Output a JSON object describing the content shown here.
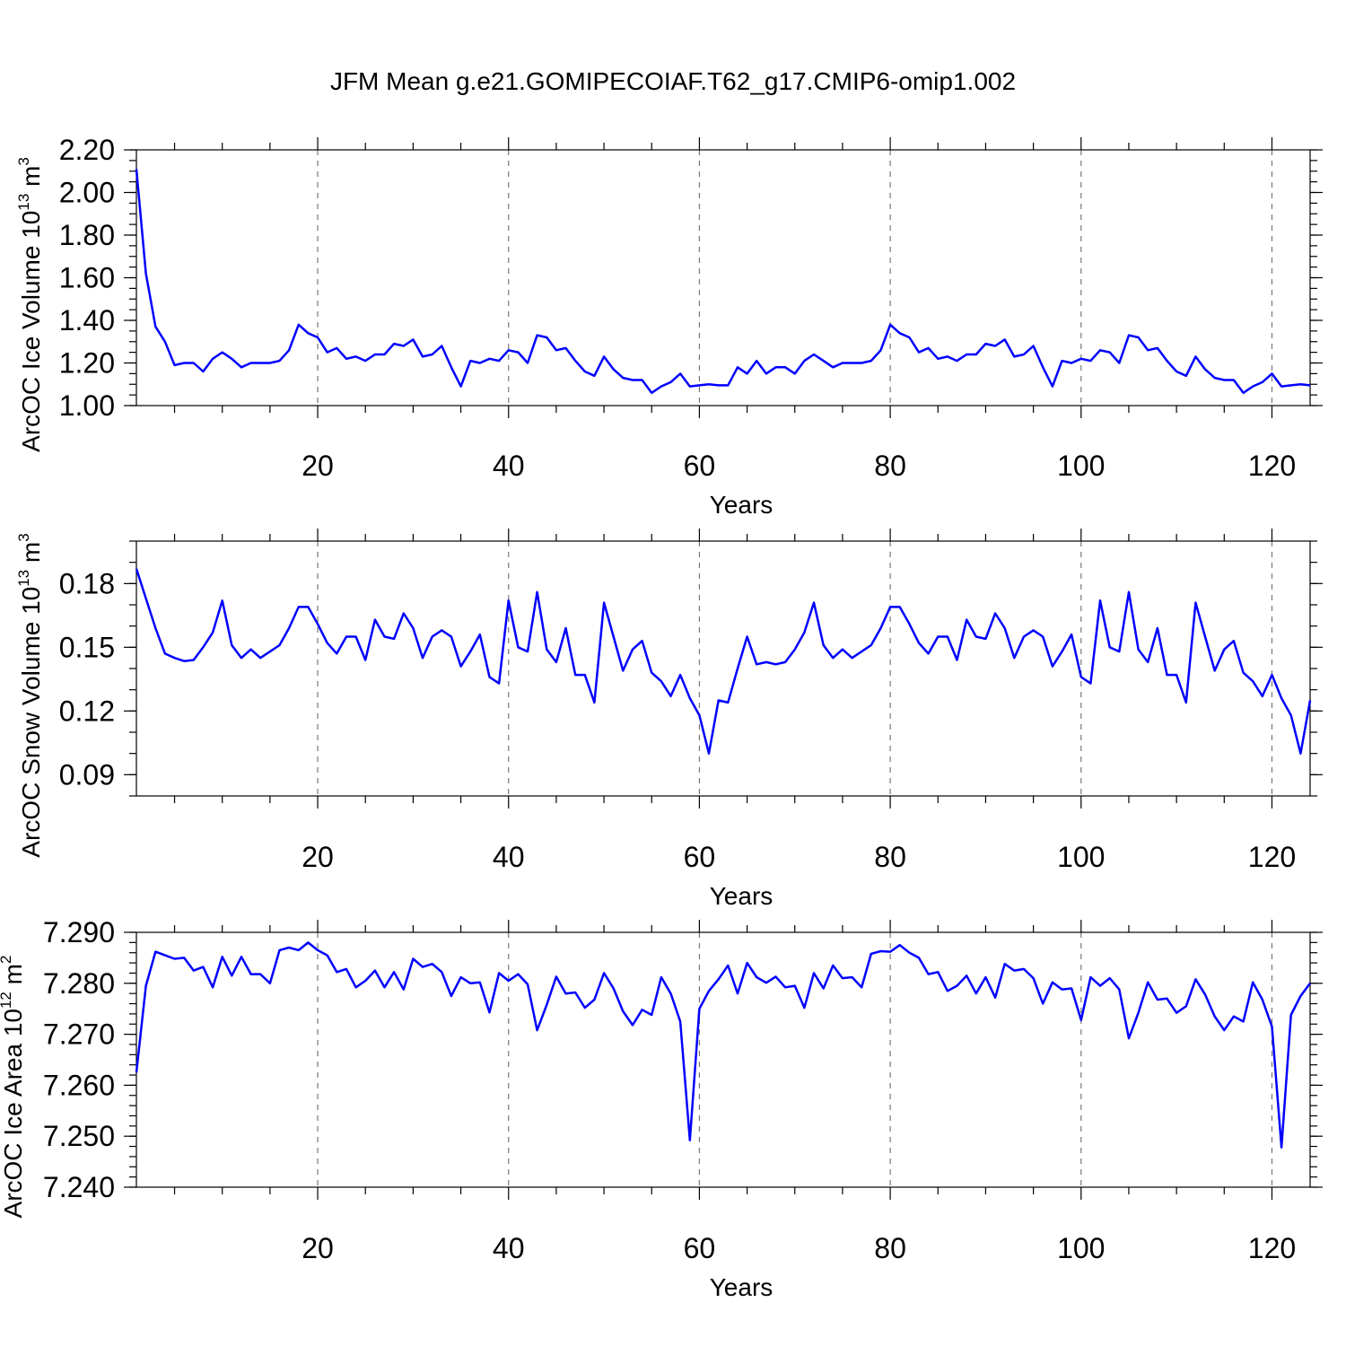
{
  "figure": {
    "title": "JFM Mean g.e21.GOMIPECOIAF.T62_g17.CMIP6-omip1.002"
  },
  "chart_data": [
    {
      "type": "line",
      "xlabel": "Years",
      "ylabel": {
        "main": "ArcOC Ice Volume 10",
        "sup": "13",
        "unit": " m",
        "unit_sup": "3"
      },
      "xlim": [
        1,
        124
      ],
      "ylim": [
        1.0,
        2.2
      ],
      "xticks": [
        20,
        40,
        60,
        80,
        100,
        120
      ],
      "xtick_labels": [
        "20",
        "40",
        "60",
        "80",
        "100",
        "120"
      ],
      "yticks": [
        1.0,
        1.2,
        1.4,
        1.6,
        1.8,
        2.0,
        2.2
      ],
      "ytick_labels": [
        "1.00",
        "1.20",
        "1.40",
        "1.60",
        "1.80",
        "2.00",
        "2.20"
      ],
      "yminor_step": 0.05,
      "grid": "vertical dashed",
      "color": "#0000ff",
      "x": [
        1,
        2,
        3,
        4,
        5,
        6,
        7,
        8,
        9,
        10,
        11,
        12,
        13,
        14,
        15,
        16,
        17,
        18,
        19,
        20,
        21,
        22,
        23,
        24,
        25,
        26,
        27,
        28,
        29,
        30,
        31,
        32,
        33,
        34,
        35,
        36,
        37,
        38,
        39,
        40,
        41,
        42,
        43,
        44,
        45,
        46,
        47,
        48,
        49,
        50,
        51,
        52,
        53,
        54,
        55,
        56,
        57,
        58,
        59,
        60,
        61,
        62,
        63,
        64,
        65,
        66,
        67,
        68,
        69,
        70,
        71,
        72,
        73,
        74,
        75,
        76,
        77,
        78,
        79,
        80,
        81,
        82,
        83,
        84,
        85,
        86,
        87,
        88,
        89,
        90,
        91,
        92,
        93,
        94,
        95,
        96,
        97,
        98,
        99,
        100,
        101,
        102,
        103,
        104,
        105,
        106,
        107,
        108,
        109,
        110,
        111,
        112,
        113,
        114,
        115,
        116,
        117,
        118,
        119,
        120,
        121,
        122,
        123,
        124
      ],
      "values": [
        2.11,
        1.62,
        1.37,
        1.3,
        1.19,
        1.2,
        1.2,
        1.16,
        1.22,
        1.25,
        1.22,
        1.18,
        1.2,
        1.2,
        1.2,
        1.21,
        1.26,
        1.38,
        1.34,
        1.32,
        1.25,
        1.27,
        1.22,
        1.23,
        1.21,
        1.24,
        1.24,
        1.29,
        1.28,
        1.31,
        1.23,
        1.24,
        1.28,
        1.18,
        1.09,
        1.21,
        1.2,
        1.22,
        1.21,
        1.26,
        1.25,
        1.2,
        1.33,
        1.32,
        1.26,
        1.27,
        1.21,
        1.16,
        1.14,
        1.23,
        1.17,
        1.13,
        1.12,
        1.12,
        1.06,
        1.09,
        1.11,
        1.15,
        1.09,
        1.095,
        1.1,
        1.095,
        1.095,
        1.18,
        1.15,
        1.21,
        1.15,
        1.18,
        1.18,
        1.15,
        1.21,
        1.24,
        1.21,
        1.18,
        1.2,
        1.2,
        1.2,
        1.21,
        1.26,
        1.38,
        1.34,
        1.32,
        1.25,
        1.27,
        1.22,
        1.23,
        1.21,
        1.24,
        1.24,
        1.29,
        1.28,
        1.31,
        1.23,
        1.24,
        1.28,
        1.18,
        1.09,
        1.21,
        1.2,
        1.22,
        1.21,
        1.26,
        1.25,
        1.2,
        1.33,
        1.32,
        1.26,
        1.27,
        1.21,
        1.16,
        1.14,
        1.23,
        1.17,
        1.13,
        1.12,
        1.12,
        1.06,
        1.09,
        1.11,
        1.15,
        1.09,
        1.095,
        1.1,
        1.095
      ]
    },
    {
      "type": "line",
      "xlabel": "Years",
      "ylabel": {
        "main": "ArcOC Snow Volume 10",
        "sup": "13",
        "unit": " m",
        "unit_sup": "3"
      },
      "xlim": [
        1,
        124
      ],
      "ylim": [
        0.08,
        0.2
      ],
      "xticks": [
        20,
        40,
        60,
        80,
        100,
        120
      ],
      "xtick_labels": [
        "20",
        "40",
        "60",
        "80",
        "100",
        "120"
      ],
      "yticks": [
        0.09,
        0.12,
        0.15,
        0.18
      ],
      "ytick_labels": [
        "0.09",
        "0.12",
        "0.15",
        "0.18"
      ],
      "yminor_step": 0.01,
      "grid": "vertical dashed",
      "color": "#0000ff",
      "x": [
        1,
        2,
        3,
        4,
        5,
        6,
        7,
        8,
        9,
        10,
        11,
        12,
        13,
        14,
        15,
        16,
        17,
        18,
        19,
        20,
        21,
        22,
        23,
        24,
        25,
        26,
        27,
        28,
        29,
        30,
        31,
        32,
        33,
        34,
        35,
        36,
        37,
        38,
        39,
        40,
        41,
        42,
        43,
        44,
        45,
        46,
        47,
        48,
        49,
        50,
        51,
        52,
        53,
        54,
        55,
        56,
        57,
        58,
        59,
        60,
        61,
        62,
        63,
        64,
        65,
        66,
        67,
        68,
        69,
        70,
        71,
        72,
        73,
        74,
        75,
        76,
        77,
        78,
        79,
        80,
        81,
        82,
        83,
        84,
        85,
        86,
        87,
        88,
        89,
        90,
        91,
        92,
        93,
        94,
        95,
        96,
        97,
        98,
        99,
        100,
        101,
        102,
        103,
        104,
        105,
        106,
        107,
        108,
        109,
        110,
        111,
        112,
        113,
        114,
        115,
        116,
        117,
        118,
        119,
        120,
        121,
        122,
        123,
        124
      ],
      "values": [
        0.187,
        0.173,
        0.159,
        0.147,
        0.145,
        0.1435,
        0.144,
        0.15,
        0.157,
        0.172,
        0.151,
        0.145,
        0.149,
        0.145,
        0.148,
        0.151,
        0.159,
        0.169,
        0.169,
        0.161,
        0.152,
        0.147,
        0.155,
        0.155,
        0.144,
        0.163,
        0.155,
        0.154,
        0.166,
        0.159,
        0.145,
        0.155,
        0.158,
        0.155,
        0.141,
        0.148,
        0.156,
        0.136,
        0.133,
        0.172,
        0.15,
        0.148,
        0.176,
        0.149,
        0.143,
        0.159,
        0.137,
        0.137,
        0.124,
        0.171,
        0.155,
        0.139,
        0.149,
        0.153,
        0.138,
        0.134,
        0.127,
        0.137,
        0.126,
        0.118,
        0.1,
        0.125,
        0.124,
        0.14,
        0.155,
        0.142,
        0.143,
        0.142,
        0.143,
        0.149,
        0.157,
        0.171,
        0.151,
        0.145,
        0.149,
        0.145,
        0.148,
        0.151,
        0.159,
        0.169,
        0.169,
        0.161,
        0.152,
        0.147,
        0.155,
        0.155,
        0.144,
        0.163,
        0.155,
        0.154,
        0.166,
        0.159,
        0.145,
        0.155,
        0.158,
        0.155,
        0.141,
        0.148,
        0.156,
        0.136,
        0.133,
        0.172,
        0.15,
        0.148,
        0.176,
        0.149,
        0.143,
        0.159,
        0.137,
        0.137,
        0.124,
        0.171,
        0.155,
        0.139,
        0.149,
        0.153,
        0.138,
        0.134,
        0.127,
        0.137,
        0.126,
        0.118,
        0.1,
        0.125
      ]
    },
    {
      "type": "line",
      "xlabel": "Years",
      "ylabel": {
        "main": "ArcOC Ice Area 10",
        "sup": "12",
        "unit": " m",
        "unit_sup": "2"
      },
      "xlim": [
        1,
        124
      ],
      "ylim": [
        7.24,
        7.29
      ],
      "xticks": [
        20,
        40,
        60,
        80,
        100,
        120
      ],
      "xtick_labels": [
        "20",
        "40",
        "60",
        "80",
        "100",
        "120"
      ],
      "yticks": [
        7.24,
        7.25,
        7.26,
        7.27,
        7.28,
        7.29
      ],
      "ytick_labels": [
        "7.240",
        "7.250",
        "7.260",
        "7.270",
        "7.280",
        "7.290"
      ],
      "yminor_step": 0.002,
      "grid": "vertical dashed",
      "color": "#0000ff",
      "x": [
        1,
        2,
        3,
        4,
        5,
        6,
        7,
        8,
        9,
        10,
        11,
        12,
        13,
        14,
        15,
        16,
        17,
        18,
        19,
        20,
        21,
        22,
        23,
        24,
        25,
        26,
        27,
        28,
        29,
        30,
        31,
        32,
        33,
        34,
        35,
        36,
        37,
        38,
        39,
        40,
        41,
        42,
        43,
        44,
        45,
        46,
        47,
        48,
        49,
        50,
        51,
        52,
        53,
        54,
        55,
        56,
        57,
        58,
        59,
        60,
        61,
        62,
        63,
        64,
        65,
        66,
        67,
        68,
        69,
        70,
        71,
        72,
        73,
        74,
        75,
        76,
        77,
        78,
        79,
        80,
        81,
        82,
        83,
        84,
        85,
        86,
        87,
        88,
        89,
        90,
        91,
        92,
        93,
        94,
        95,
        96,
        97,
        98,
        99,
        100,
        101,
        102,
        103,
        104,
        105,
        106,
        107,
        108,
        109,
        110,
        111,
        112,
        113,
        114,
        115,
        116,
        117,
        118,
        119,
        120,
        121,
        122,
        123,
        124
      ],
      "values": [
        7.2625,
        7.2795,
        7.2862,
        7.2855,
        7.2848,
        7.285,
        7.2825,
        7.2832,
        7.2792,
        7.2852,
        7.2815,
        7.2852,
        7.2818,
        7.2818,
        7.28,
        7.2865,
        7.287,
        7.2865,
        7.288,
        7.2865,
        7.2855,
        7.2822,
        7.2828,
        7.2792,
        7.2805,
        7.2825,
        7.2792,
        7.2822,
        7.2788,
        7.2848,
        7.2832,
        7.2838,
        7.2822,
        7.2775,
        7.2812,
        7.28,
        7.2802,
        7.2743,
        7.282,
        7.2805,
        7.2818,
        7.2798,
        7.2708,
        7.2758,
        7.2813,
        7.278,
        7.2782,
        7.2752,
        7.2768,
        7.282,
        7.279,
        7.2745,
        7.2718,
        7.2748,
        7.2738,
        7.2812,
        7.278,
        7.2725,
        7.2492,
        7.275,
        7.2785,
        7.2808,
        7.2835,
        7.278,
        7.284,
        7.2812,
        7.2801,
        7.2813,
        7.2792,
        7.2795,
        7.2752,
        7.282,
        7.279,
        7.2835,
        7.281,
        7.2812,
        7.2792,
        7.2858,
        7.2863,
        7.2862,
        7.2875,
        7.286,
        7.285,
        7.2818,
        7.2822,
        7.2785,
        7.2795,
        7.2815,
        7.278,
        7.2812,
        7.2772,
        7.2838,
        7.2825,
        7.2828,
        7.281,
        7.276,
        7.2802,
        7.2788,
        7.279,
        7.2728,
        7.2812,
        7.2795,
        7.281,
        7.2788,
        7.2692,
        7.2742,
        7.2802,
        7.2768,
        7.277,
        7.2742,
        7.2755,
        7.2808,
        7.2778,
        7.2735,
        7.2708,
        7.2735,
        7.2725,
        7.2802,
        7.2768,
        7.2715,
        7.2478,
        7.2738,
        7.2775,
        7.28
      ]
    }
  ]
}
